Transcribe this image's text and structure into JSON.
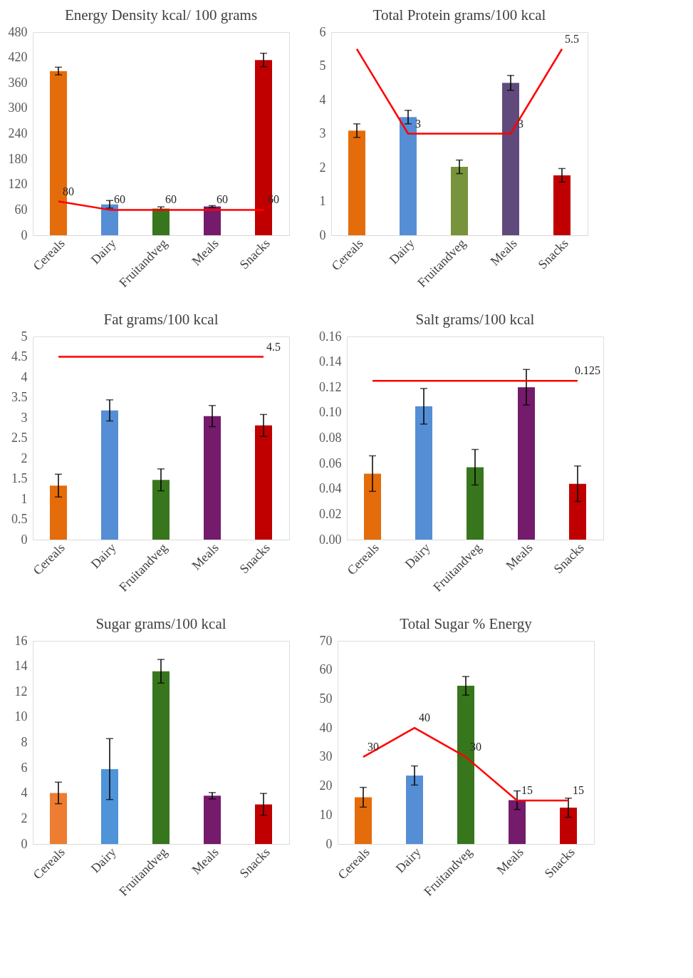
{
  "chart_data": [
    {
      "type": "bar",
      "title": "Energy Density kcal/ 100 grams",
      "categories": [
        "Cereals",
        "Dairy",
        "Fruitandveg",
        "Meals",
        "Snacks"
      ],
      "ylim": [
        0,
        480
      ],
      "yticks": [
        0,
        60,
        120,
        180,
        240,
        300,
        360,
        420,
        480
      ],
      "grid": false,
      "legend": false,
      "series": [
        {
          "values": [
            388,
            73,
            63,
            68,
            414
          ],
          "colors": [
            "#e46c0a",
            "#558ed5",
            "#38761d",
            "#741b6b",
            "#c00000"
          ],
          "errors": [
            9,
            9,
            4,
            2,
            16
          ]
        },
        {
          "type": "line",
          "color": "#ff0000",
          "values": [
            80,
            60,
            60,
            60,
            60
          ],
          "value_labels": [
            "80",
            "60",
            "60",
            "60",
            "60"
          ]
        }
      ]
    },
    {
      "type": "bar",
      "title": "Total Protein grams/100 kcal",
      "categories": [
        "Cereals",
        "Dairy",
        "Fruitandveg",
        "Meals",
        "Snacks"
      ],
      "ylim": [
        0,
        6
      ],
      "yticks": [
        0,
        1,
        2,
        3,
        4,
        5,
        6
      ],
      "grid": false,
      "legend": false,
      "series": [
        {
          "values": [
            3.09,
            3.49,
            2.02,
            4.5,
            1.77
          ],
          "colors": [
            "#e46c0a",
            "#558ed5",
            "#77933c",
            "#604a7b",
            "#c00000"
          ],
          "errors": [
            0.2,
            0.2,
            0.2,
            0.22,
            0.2
          ]
        },
        {
          "type": "line",
          "color": "#ff0000",
          "values": [
            5.5,
            3,
            3,
            3,
            5.5
          ],
          "value_labels": [
            null,
            "3",
            null,
            "3",
            "5.5"
          ]
        }
      ]
    },
    {
      "type": "bar",
      "title": "Fat grams/100 kcal",
      "categories": [
        "Cereals",
        "Dairy",
        "Fruitandveg",
        "Meals",
        "Snacks"
      ],
      "ylim": [
        0,
        5
      ],
      "yticks": [
        0,
        0.5,
        1,
        1.5,
        2,
        2.5,
        3,
        3.5,
        4,
        4.5,
        5
      ],
      "grid": false,
      "legend": false,
      "series": [
        {
          "values": [
            1.33,
            3.18,
            1.47,
            3.04,
            2.81
          ],
          "colors": [
            "#e46c0a",
            "#558ed5",
            "#38761d",
            "#741b6b",
            "#c00000"
          ],
          "errors": [
            0.28,
            0.26,
            0.27,
            0.26,
            0.27
          ]
        },
        {
          "type": "line",
          "color": "#ff0000",
          "values": [
            4.5,
            4.5,
            4.5,
            4.5,
            4.5
          ],
          "value_labels": [
            null,
            null,
            null,
            null,
            "4.5"
          ]
        }
      ]
    },
    {
      "type": "bar",
      "title": "Salt grams/100 kcal",
      "categories": [
        "Cereals",
        "Dairy",
        "Fruitandveg",
        "Meals",
        "Snacks"
      ],
      "ylim": [
        0,
        0.16
      ],
      "yticks": [
        {
          "value": 0,
          "label": "0.00"
        },
        {
          "value": 0.02,
          "label": "0.02"
        },
        {
          "value": 0.04,
          "label": "0.04"
        },
        {
          "value": 0.06,
          "label": "0.06"
        },
        {
          "value": 0.08,
          "label": "0.08"
        },
        {
          "value": 0.1,
          "label": "0.10"
        },
        {
          "value": 0.12,
          "label": "0.12"
        },
        {
          "value": 0.14,
          "label": "0.14"
        },
        {
          "value": 0.16,
          "label": "0.16"
        }
      ],
      "grid": false,
      "legend": false,
      "series": [
        {
          "values": [
            0.052,
            0.105,
            0.057,
            0.12,
            0.044
          ],
          "colors": [
            "#e46c0a",
            "#558ed5",
            "#38761d",
            "#741b6b",
            "#c00000"
          ],
          "errors": [
            0.014,
            0.014,
            0.014,
            0.014,
            0.014
          ]
        },
        {
          "type": "line",
          "color": "#ff0000",
          "values": [
            0.125,
            0.125,
            0.125,
            0.125,
            0.125
          ],
          "value_labels": [
            null,
            null,
            null,
            null,
            "0.125"
          ]
        }
      ]
    },
    {
      "type": "bar",
      "title": "Sugar grams/100 kcal",
      "categories": [
        "Cereals",
        "Dairy",
        "Fruitandveg",
        "Meals",
        "Snacks"
      ],
      "ylim": [
        0,
        16
      ],
      "yticks": [
        0,
        2,
        4,
        6,
        8,
        10,
        12,
        14,
        16
      ],
      "grid": false,
      "legend": false,
      "series": [
        {
          "values": [
            4.02,
            5.9,
            13.6,
            3.8,
            3.12
          ],
          "colors": [
            "#ed7d31",
            "#4f93d8",
            "#38761d",
            "#741b6b",
            "#c00000"
          ],
          "errors": [
            0.85,
            2.4,
            0.93,
            0.25,
            0.86
          ]
        }
      ]
    },
    {
      "type": "bar",
      "title": "Total Sugar % Energy",
      "categories": [
        "Cereals",
        "Dairy",
        "Fruitandveg",
        "Meals",
        "Snacks"
      ],
      "ylim": [
        0,
        70
      ],
      "yticks": [
        0,
        10,
        20,
        30,
        40,
        50,
        60,
        70
      ],
      "grid": false,
      "legend": false,
      "series": [
        {
          "values": [
            16.1,
            23.6,
            54.5,
            15.1,
            12.5
          ],
          "colors": [
            "#e46c0a",
            "#558ed5",
            "#38761d",
            "#741b6b",
            "#c00000"
          ],
          "errors": [
            3.4,
            3.3,
            3.2,
            3.2,
            3.3
          ]
        },
        {
          "type": "line",
          "color": "#ff0000",
          "values": [
            30,
            40,
            30,
            15,
            15
          ],
          "value_labels": [
            "30",
            "40",
            "30",
            "15",
            "15"
          ]
        }
      ]
    }
  ]
}
